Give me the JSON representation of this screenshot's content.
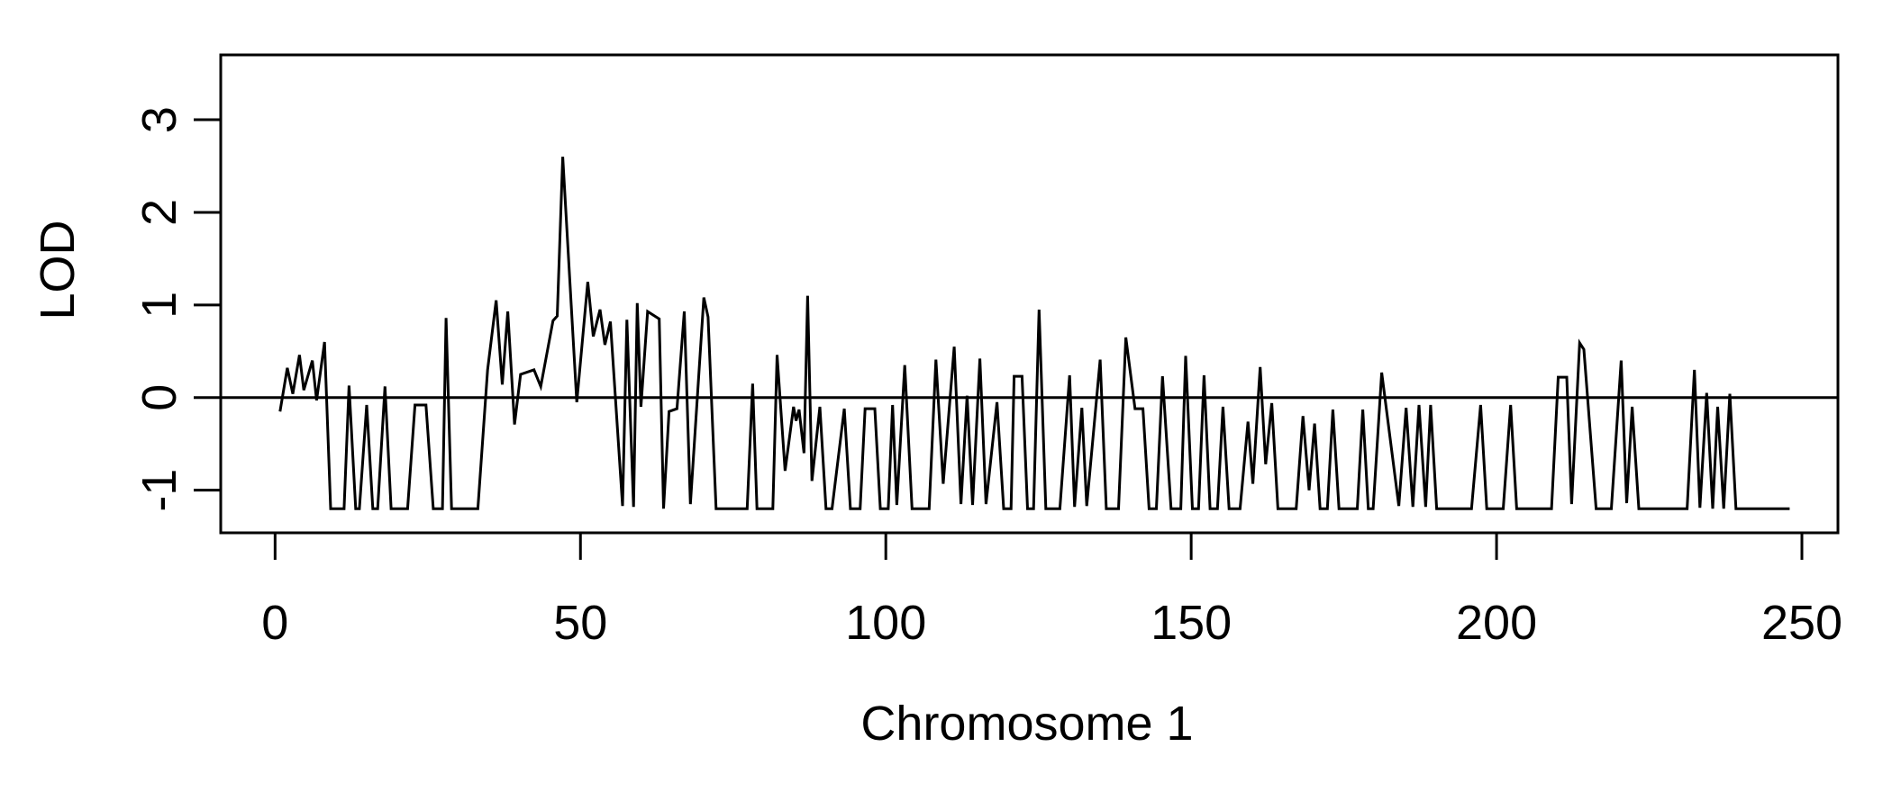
{
  "figure": {
    "background": "#ffffff",
    "foreground": "#000000"
  },
  "chart_data": {
    "type": "line",
    "title": "",
    "xlabel": "Chromosome 1",
    "ylabel": "LOD",
    "legend": null,
    "grid": false,
    "x_ticks": [
      0,
      50,
      100,
      150,
      200,
      250
    ],
    "y_ticks": [
      -1,
      0,
      1,
      2,
      3
    ],
    "xlim": [
      -8.9,
      255.9
    ],
    "ylim": [
      -1.46,
      3.7
    ],
    "zero_line_y": 0,
    "baseline_lod": -1.2,
    "line_color": "#000000",
    "series": [
      {
        "name": "LOD",
        "points": [
          [
            0.8,
            -0.15
          ],
          [
            2.0,
            0.32
          ],
          [
            2.9,
            0.04
          ],
          [
            4.0,
            0.46
          ],
          [
            4.7,
            0.08
          ],
          [
            6.1,
            0.4
          ],
          [
            6.8,
            -0.03
          ],
          [
            8.1,
            0.6
          ],
          [
            9.1,
            -1.2
          ],
          [
            11.3,
            -1.2
          ],
          [
            12.1,
            0.13
          ],
          [
            13.2,
            -1.2
          ],
          [
            13.8,
            -1.2
          ],
          [
            15.0,
            -0.08
          ],
          [
            16.0,
            -1.2
          ],
          [
            16.8,
            -1.2
          ],
          [
            18.0,
            0.12
          ],
          [
            19.0,
            -1.2
          ],
          [
            21.7,
            -1.2
          ],
          [
            22.9,
            -0.08
          ],
          [
            24.7,
            -0.08
          ],
          [
            25.9,
            -1.2
          ],
          [
            27.4,
            -1.2
          ],
          [
            28.0,
            0.86
          ],
          [
            28.9,
            -1.2
          ],
          [
            33.2,
            -1.2
          ],
          [
            34.8,
            0.3
          ],
          [
            36.2,
            1.05
          ],
          [
            37.2,
            0.14
          ],
          [
            38.1,
            0.93
          ],
          [
            39.2,
            -0.29
          ],
          [
            40.2,
            0.25
          ],
          [
            42.4,
            0.3
          ],
          [
            43.5,
            0.12
          ],
          [
            45.5,
            0.83
          ],
          [
            46.2,
            0.88
          ],
          [
            47.1,
            2.6
          ],
          [
            49.4,
            -0.05
          ],
          [
            51.2,
            1.25
          ],
          [
            52.1,
            0.66
          ],
          [
            53.2,
            0.95
          ],
          [
            54.0,
            0.57
          ],
          [
            54.9,
            0.82
          ],
          [
            56.9,
            -1.17
          ],
          [
            57.6,
            0.84
          ],
          [
            58.7,
            -1.18
          ],
          [
            59.3,
            1.02
          ],
          [
            59.9,
            -0.1
          ],
          [
            61.0,
            0.93
          ],
          [
            62.9,
            0.85
          ],
          [
            63.6,
            -1.2
          ],
          [
            64.5,
            -0.15
          ],
          [
            65.8,
            -0.12
          ],
          [
            67.0,
            0.93
          ],
          [
            68.0,
            -1.15
          ],
          [
            70.2,
            1.08
          ],
          [
            70.9,
            0.87
          ],
          [
            72.2,
            -1.2
          ],
          [
            77.3,
            -1.2
          ],
          [
            78.2,
            0.15
          ],
          [
            78.9,
            -1.2
          ],
          [
            81.5,
            -1.2
          ],
          [
            82.2,
            0.46
          ],
          [
            83.5,
            -0.79
          ],
          [
            84.9,
            -0.1
          ],
          [
            85.3,
            -0.25
          ],
          [
            85.8,
            -0.13
          ],
          [
            86.6,
            -0.6
          ],
          [
            87.2,
            1.1
          ],
          [
            87.9,
            -0.9
          ],
          [
            89.2,
            -0.1
          ],
          [
            90.2,
            -1.2
          ],
          [
            91.2,
            -1.2
          ],
          [
            93.2,
            -0.12
          ],
          [
            94.2,
            -1.2
          ],
          [
            95.8,
            -1.2
          ],
          [
            96.6,
            -0.12
          ],
          [
            98.2,
            -0.12
          ],
          [
            99.1,
            -1.2
          ],
          [
            100.4,
            -1.2
          ],
          [
            101.1,
            -0.08
          ],
          [
            101.8,
            -1.16
          ],
          [
            103.1,
            0.35
          ],
          [
            104.3,
            -1.2
          ],
          [
            107.1,
            -1.2
          ],
          [
            108.2,
            0.41
          ],
          [
            109.4,
            -0.93
          ],
          [
            111.2,
            0.55
          ],
          [
            112.3,
            -1.15
          ],
          [
            113.3,
            0.02
          ],
          [
            114.2,
            -1.16
          ],
          [
            115.4,
            0.42
          ],
          [
            116.4,
            -1.15
          ],
          [
            118.2,
            -0.05
          ],
          [
            119.3,
            -1.2
          ],
          [
            120.5,
            -1.2
          ],
          [
            121.0,
            0.23
          ],
          [
            122.3,
            0.23
          ],
          [
            123.2,
            -1.2
          ],
          [
            124.2,
            -1.2
          ],
          [
            125.1,
            0.95
          ],
          [
            126.2,
            -1.2
          ],
          [
            128.5,
            -1.2
          ],
          [
            130.1,
            0.24
          ],
          [
            130.9,
            -1.18
          ],
          [
            132.1,
            -0.11
          ],
          [
            132.9,
            -1.17
          ],
          [
            135.1,
            0.41
          ],
          [
            136.1,
            -1.2
          ],
          [
            138.1,
            -1.2
          ],
          [
            139.3,
            0.65
          ],
          [
            140.8,
            -0.12
          ],
          [
            142.1,
            -0.12
          ],
          [
            143.1,
            -1.2
          ],
          [
            144.3,
            -1.2
          ],
          [
            145.3,
            0.23
          ],
          [
            146.7,
            -1.2
          ],
          [
            148.3,
            -1.2
          ],
          [
            149.1,
            0.45
          ],
          [
            150.2,
            -1.2
          ],
          [
            151.2,
            -1.2
          ],
          [
            152.1,
            0.24
          ],
          [
            153.1,
            -1.2
          ],
          [
            154.3,
            -1.2
          ],
          [
            155.2,
            -0.1
          ],
          [
            156.2,
            -1.2
          ],
          [
            158.0,
            -1.2
          ],
          [
            159.3,
            -0.26
          ],
          [
            160.1,
            -0.93
          ],
          [
            161.3,
            0.33
          ],
          [
            162.2,
            -0.72
          ],
          [
            163.2,
            -0.06
          ],
          [
            164.2,
            -1.2
          ],
          [
            167.2,
            -1.2
          ],
          [
            168.3,
            -0.2
          ],
          [
            169.3,
            -1.0
          ],
          [
            170.2,
            -0.28
          ],
          [
            171.1,
            -1.2
          ],
          [
            172.3,
            -1.2
          ],
          [
            173.2,
            -0.13
          ],
          [
            174.2,
            -1.2
          ],
          [
            177.2,
            -1.2
          ],
          [
            178.1,
            -0.13
          ],
          [
            179.0,
            -1.2
          ],
          [
            179.8,
            -1.2
          ],
          [
            181.2,
            0.27
          ],
          [
            184.0,
            -1.17
          ],
          [
            185.2,
            -0.11
          ],
          [
            186.3,
            -1.18
          ],
          [
            187.3,
            -0.08
          ],
          [
            188.4,
            -1.18
          ],
          [
            189.2,
            -0.08
          ],
          [
            190.2,
            -1.2
          ],
          [
            195.9,
            -1.2
          ],
          [
            197.4,
            -0.08
          ],
          [
            198.4,
            -1.2
          ],
          [
            201.1,
            -1.2
          ],
          [
            202.3,
            -0.08
          ],
          [
            203.3,
            -1.2
          ],
          [
            209.0,
            -1.2
          ],
          [
            210.1,
            0.22
          ],
          [
            211.5,
            0.22
          ],
          [
            212.3,
            -1.15
          ],
          [
            213.6,
            0.59
          ],
          [
            214.3,
            0.52
          ],
          [
            216.3,
            -1.2
          ],
          [
            218.8,
            -1.2
          ],
          [
            220.4,
            0.4
          ],
          [
            221.3,
            -1.14
          ],
          [
            222.2,
            -0.1
          ],
          [
            223.3,
            -1.2
          ],
          [
            231.2,
            -1.2
          ],
          [
            232.4,
            0.3
          ],
          [
            233.3,
            -1.19
          ],
          [
            234.4,
            0.05
          ],
          [
            235.4,
            -1.2
          ],
          [
            236.2,
            -0.1
          ],
          [
            237.2,
            -1.2
          ],
          [
            238.2,
            0.04
          ],
          [
            239.2,
            -1.2
          ],
          [
            248.0,
            -1.2
          ]
        ]
      }
    ]
  }
}
